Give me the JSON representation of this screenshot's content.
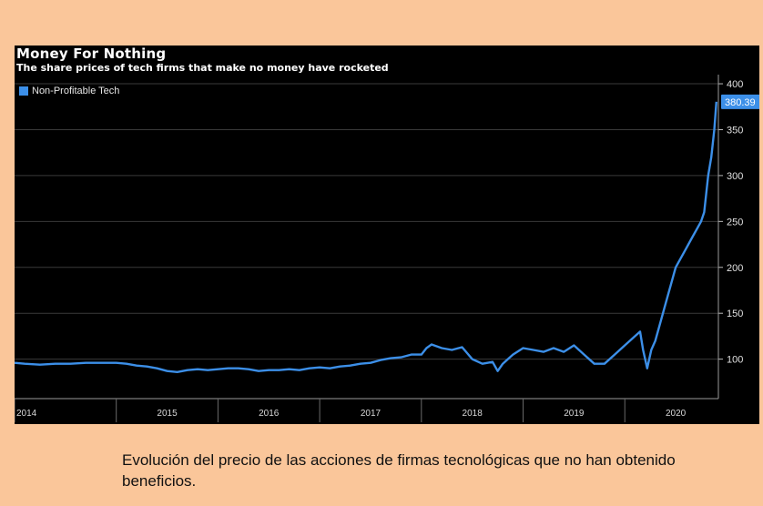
{
  "chart_data": {
    "type": "line",
    "title": "Money For Nothing",
    "subtitle": "The share prices of tech firms that make no money have rocketed",
    "xlabel": "",
    "ylabel": "",
    "x_ticks": [
      "2014",
      "2015",
      "2016",
      "2017",
      "2018",
      "2019",
      "2020"
    ],
    "y_ticks": [
      100,
      150,
      200,
      250,
      300,
      350,
      400
    ],
    "ylim": [
      57,
      406
    ],
    "xlim": [
      2014.0,
      2020.92
    ],
    "last_value_label": "380.39",
    "grid": true,
    "legend_position": "top-left",
    "series": [
      {
        "name": "Non-Profitable Tech",
        "color": "#3C8FE8",
        "x": [
          2014.0,
          2014.1,
          2014.25,
          2014.4,
          2014.55,
          2014.7,
          2014.85,
          2015.0,
          2015.1,
          2015.2,
          2015.3,
          2015.4,
          2015.5,
          2015.6,
          2015.7,
          2015.8,
          2015.9,
          2016.0,
          2016.1,
          2016.2,
          2016.3,
          2016.4,
          2016.5,
          2016.6,
          2016.7,
          2016.8,
          2016.9,
          2017.0,
          2017.1,
          2017.2,
          2017.3,
          2017.4,
          2017.5,
          2017.6,
          2017.7,
          2017.8,
          2017.9,
          2018.0,
          2018.05,
          2018.1,
          2018.2,
          2018.3,
          2018.4,
          2018.5,
          2018.6,
          2018.7,
          2018.75,
          2018.8,
          2018.85,
          2018.9,
          2019.0,
          2019.1,
          2019.2,
          2019.3,
          2019.4,
          2019.5,
          2019.6,
          2019.7,
          2019.8,
          2019.9,
          2020.0,
          2020.1,
          2020.15,
          2020.18,
          2020.22,
          2020.26,
          2020.3,
          2020.35,
          2020.4,
          2020.45,
          2020.5,
          2020.55,
          2020.6,
          2020.65,
          2020.7,
          2020.75,
          2020.78,
          2020.8,
          2020.82,
          2020.85,
          2020.88,
          2020.9
        ],
        "values": [
          96,
          95,
          94,
          95,
          95,
          96,
          96,
          96,
          95,
          93,
          92,
          90,
          87,
          86,
          88,
          89,
          88,
          89,
          90,
          90,
          89,
          87,
          88,
          88,
          89,
          88,
          90,
          91,
          90,
          92,
          93,
          95,
          96,
          99,
          101,
          102,
          105,
          105,
          112,
          116,
          112,
          110,
          113,
          100,
          95,
          97,
          87,
          95,
          100,
          105,
          112,
          110,
          108,
          112,
          108,
          115,
          105,
          95,
          95,
          105,
          115,
          125,
          130,
          110,
          90,
          110,
          120,
          140,
          160,
          180,
          200,
          210,
          220,
          230,
          240,
          250,
          260,
          280,
          300,
          320,
          350,
          380.39
        ]
      }
    ]
  },
  "caption": "Evolución del precio de las acciones de firmas tecnológicas que no han obtenido beneficios."
}
